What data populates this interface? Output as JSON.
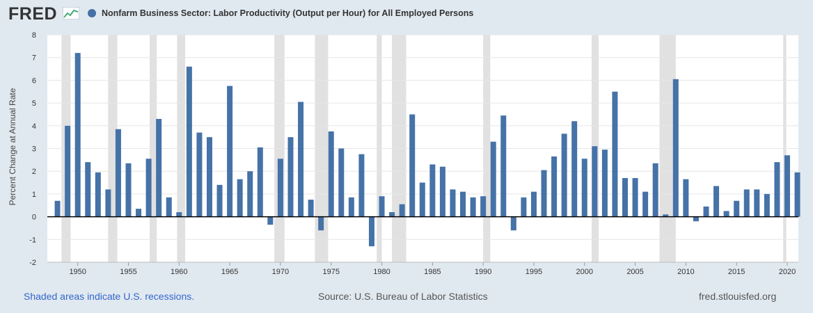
{
  "header": {
    "logo_text": "FRED",
    "series_title": "Nonfarm Business Sector: Labor Productivity (Output per Hour) for All Employed Persons"
  },
  "footer": {
    "recession_note": "Shaded areas indicate U.S. recessions.",
    "source": "Source: U.S. Bureau of Labor Statistics",
    "site": "fred.stlouisfed.org"
  },
  "colors": {
    "bar": "#4572a7",
    "recession": "#e1e1e1",
    "background": "#e1e9f0",
    "plot": "#ffffff"
  },
  "chart_data": {
    "type": "bar",
    "ylabel": "Percent Change at Annual Rate",
    "ylim": [
      -2,
      8
    ],
    "yticks": [
      -2,
      -1,
      0,
      1,
      2,
      3,
      4,
      5,
      6,
      7,
      8
    ],
    "xticks": [
      1950,
      1955,
      1960,
      1965,
      1970,
      1975,
      1980,
      1985,
      1990,
      1995,
      2000,
      2005,
      2010,
      2015,
      2020
    ],
    "grid": true,
    "x": [
      1948,
      1949,
      1950,
      1951,
      1952,
      1953,
      1954,
      1955,
      1956,
      1957,
      1958,
      1959,
      1960,
      1961,
      1962,
      1963,
      1964,
      1965,
      1966,
      1967,
      1968,
      1969,
      1970,
      1971,
      1972,
      1973,
      1974,
      1975,
      1976,
      1977,
      1978,
      1979,
      1980,
      1981,
      1982,
      1983,
      1984,
      1985,
      1986,
      1987,
      1988,
      1989,
      1990,
      1991,
      1992,
      1993,
      1994,
      1995,
      1996,
      1997,
      1998,
      1999,
      2000,
      2001,
      2002,
      2003,
      2004,
      2005,
      2006,
      2007,
      2008,
      2009,
      2010,
      2011,
      2012,
      2013,
      2014,
      2015,
      2016,
      2017,
      2018,
      2019,
      2020,
      2021
    ],
    "values": [
      0.7,
      4.0,
      7.2,
      2.4,
      1.95,
      1.2,
      3.85,
      2.35,
      0.35,
      2.55,
      4.3,
      0.85,
      0.2,
      6.6,
      3.7,
      3.5,
      1.4,
      5.75,
      1.65,
      2.0,
      3.05,
      -0.35,
      2.55,
      3.5,
      5.05,
      0.75,
      -0.6,
      3.75,
      3.0,
      0.85,
      2.75,
      -1.3,
      0.9,
      0.2,
      0.55,
      4.5,
      1.5,
      2.3,
      2.2,
      1.2,
      1.1,
      0.85,
      0.9,
      3.3,
      4.45,
      -0.6,
      0.85,
      1.1,
      2.05,
      2.65,
      3.65,
      4.2,
      2.55,
      3.1,
      2.95,
      5.5,
      1.7,
      1.7,
      1.1,
      2.35,
      0.1,
      6.05,
      1.65,
      -0.2,
      0.45,
      1.35,
      0.25,
      0.7,
      1.2,
      1.2,
      1.0,
      2.4,
      2.7,
      1.95
    ],
    "recessions": [
      [
        1948.9,
        1949.8
      ],
      [
        1953.5,
        1954.4
      ],
      [
        1957.6,
        1958.3
      ],
      [
        1960.3,
        1961.1
      ],
      [
        1969.9,
        1970.9
      ],
      [
        1973.9,
        1975.2
      ],
      [
        1980.0,
        1980.5
      ],
      [
        1981.5,
        1982.9
      ],
      [
        1990.5,
        1991.2
      ],
      [
        2001.2,
        2001.9
      ],
      [
        2007.9,
        2009.5
      ],
      [
        2020.1,
        2020.4
      ]
    ]
  }
}
